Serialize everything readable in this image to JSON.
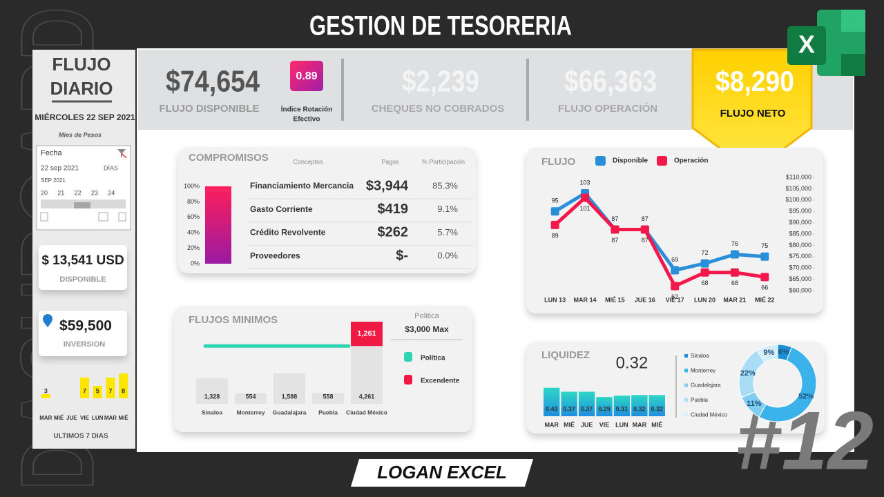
{
  "header": {
    "title": "GESTION DE TESORERIA",
    "watermark": "DASHBOARD",
    "episode": "#12",
    "brand": "LOGAN EXCEL",
    "app_icon": "X"
  },
  "sidebar": {
    "title": [
      "FLUJO",
      "DIARIO"
    ],
    "date": "MIÉRCOLES 22 SEP 2021",
    "units": "Mies de Pesos",
    "slicer": {
      "field": "Fecha",
      "selection": "22 sep 2021",
      "level": "DÍAS",
      "month": "SEP 2021",
      "days": [
        "20",
        "21",
        "22",
        "23",
        "24"
      ]
    },
    "cards": [
      {
        "value": "$ 13,541 USD",
        "label": "DISPONIBLE"
      },
      {
        "value": "$59,500",
        "label": "INVERSION"
      }
    ]
  },
  "kpis": [
    {
      "value": "$74,654",
      "label": "FLUJO DISPONIBLE"
    },
    {
      "value": "0.89",
      "label": [
        "Índice Rotación",
        "Efectivo"
      ]
    },
    {
      "value": "$2,239",
      "label": "CHEQUES NO COBRADOS"
    },
    {
      "value": "$66,363",
      "label": "FLUJO OPERACIÓN"
    },
    {
      "value": "$8,290",
      "label": "FLUJO NETO"
    }
  ],
  "chart_data": [
    {
      "type": "bar",
      "title": "ULTIMOS 7 DIAS",
      "categories": [
        "MAR",
        "MIÉ",
        "JUE",
        "VIE",
        "LUN",
        "MAR",
        "MIÉ"
      ],
      "values": [
        3,
        null,
        null,
        7,
        5,
        7,
        8
      ],
      "color": "#ffe600",
      "ylim": [
        2,
        8
      ]
    },
    {
      "type": "stacked_bar",
      "title": "COMPROMISOS",
      "columns": [
        "Conceptos",
        "Pagos",
        "% Participación"
      ],
      "categories": [
        "Financiamiento Mercancia",
        "Gasto Corriente",
        "Crédito Revolvente",
        "Proveedores"
      ],
      "payments": [
        "$3,944",
        "$419",
        "$262",
        "$-"
      ],
      "values": [
        85.3,
        9.1,
        5.7,
        0.0
      ],
      "value_labels": [
        "85.3%",
        "9.1%",
        "5.7%",
        "0.0%"
      ],
      "colors": [
        "#ff1e5a",
        "#9a1aa3"
      ],
      "ylim": [
        0,
        100
      ],
      "yticks": [
        {
          "value": 0,
          "label": "0%"
        },
        {
          "value": 20,
          "label": "20%"
        },
        {
          "value": 40,
          "label": "40%"
        },
        {
          "value": 60,
          "label": "60%"
        },
        {
          "value": 80,
          "label": "80%"
        },
        {
          "value": 100,
          "label": "100%"
        }
      ]
    },
    {
      "type": "bar",
      "title": "FLUJOS MINIMOS",
      "categories": [
        "Sinaloa",
        "Monterrey",
        "Guadalajara",
        "Puebla",
        "Ciudad México"
      ],
      "series": [
        {
          "color": "#e3e3e3",
          "values": [
            1328,
            554,
            1588,
            558,
            4261
          ],
          "value_labels": [
            "1,328",
            "554",
            "1,588",
            "558",
            "4,261"
          ]
        },
        {
          "name": "Excendente",
          "color": "#ee1a44",
          "values": [
            null,
            null,
            null,
            null,
            1261
          ],
          "value_labels": [
            null,
            null,
            null,
            null,
            "1,261"
          ]
        }
      ],
      "policy": {
        "title": "Politica",
        "value_label": "$3,000 Max",
        "value": 3000,
        "name": "Política",
        "color": "#2fd4b5"
      },
      "ylim": [
        0,
        5000
      ]
    },
    {
      "type": "line",
      "title": "FLUJO",
      "categories": [
        "LUN 13",
        "MAR 14",
        "MIÉ 15",
        "JUE 16",
        "VIE 17",
        "LUN 20",
        "MAR 21",
        "MIÉ 22"
      ],
      "series": [
        {
          "name": "Disponible",
          "color": "#2a8fd9",
          "values": [
            95000,
            103000,
            87000,
            87000,
            69000,
            72000,
            76000,
            75000
          ],
          "value_labels": [
            "95",
            "103",
            "87",
            "87",
            "69",
            "72",
            "76",
            "75"
          ]
        },
        {
          "name": "Operación",
          "color": "#f2194a",
          "values": [
            89000,
            101000,
            87000,
            87000,
            62000,
            68000,
            68000,
            66000
          ],
          "value_labels": [
            "89",
            "101",
            "87",
            "87",
            "62",
            "68",
            "68",
            "66"
          ]
        }
      ],
      "ylim": [
        60000,
        110000
      ],
      "yticks": [
        {
          "value": 60000,
          "label": "$60,000"
        },
        {
          "value": 65000,
          "label": "$65,000"
        },
        {
          "value": 70000,
          "label": "$70,000"
        },
        {
          "value": 75000,
          "label": "$75,000"
        },
        {
          "value": 80000,
          "label": "$80,000"
        },
        {
          "value": 85000,
          "label": "$85,000"
        },
        {
          "value": 90000,
          "label": "$90,000"
        },
        {
          "value": 95000,
          "label": "$95,000"
        },
        {
          "value": 100000,
          "label": "$100,000"
        },
        {
          "value": 105000,
          "label": "$105,000"
        },
        {
          "value": 110000,
          "label": "$110,000"
        }
      ]
    },
    {
      "type": "bar",
      "title": "LIQUIDEZ",
      "headline": "0.32",
      "categories": [
        "MAR",
        "MIÉ",
        "JUE",
        "VIE",
        "LUN",
        "MAR",
        "MIÉ"
      ],
      "values": [
        0.43,
        0.37,
        0.37,
        0.29,
        0.31,
        0.32,
        0.32
      ],
      "colors": [
        "#2fd6c6",
        "#1e8fe0"
      ],
      "ylim": [
        0,
        0.5
      ]
    },
    {
      "type": "pie",
      "categories": [
        "Sinaloa",
        "Monterrey",
        "Guadalajara",
        "Puebla",
        "Ciudad México"
      ],
      "values": [
        6,
        52,
        11,
        22,
        9
      ],
      "value_labels": [
        "6%",
        "52%",
        "11%",
        "22%",
        "9%"
      ],
      "colors": [
        "#1e90d6",
        "#3bb3ea",
        "#7fcdf0",
        "#a9ddf5",
        "#d3edf9"
      ]
    }
  ]
}
